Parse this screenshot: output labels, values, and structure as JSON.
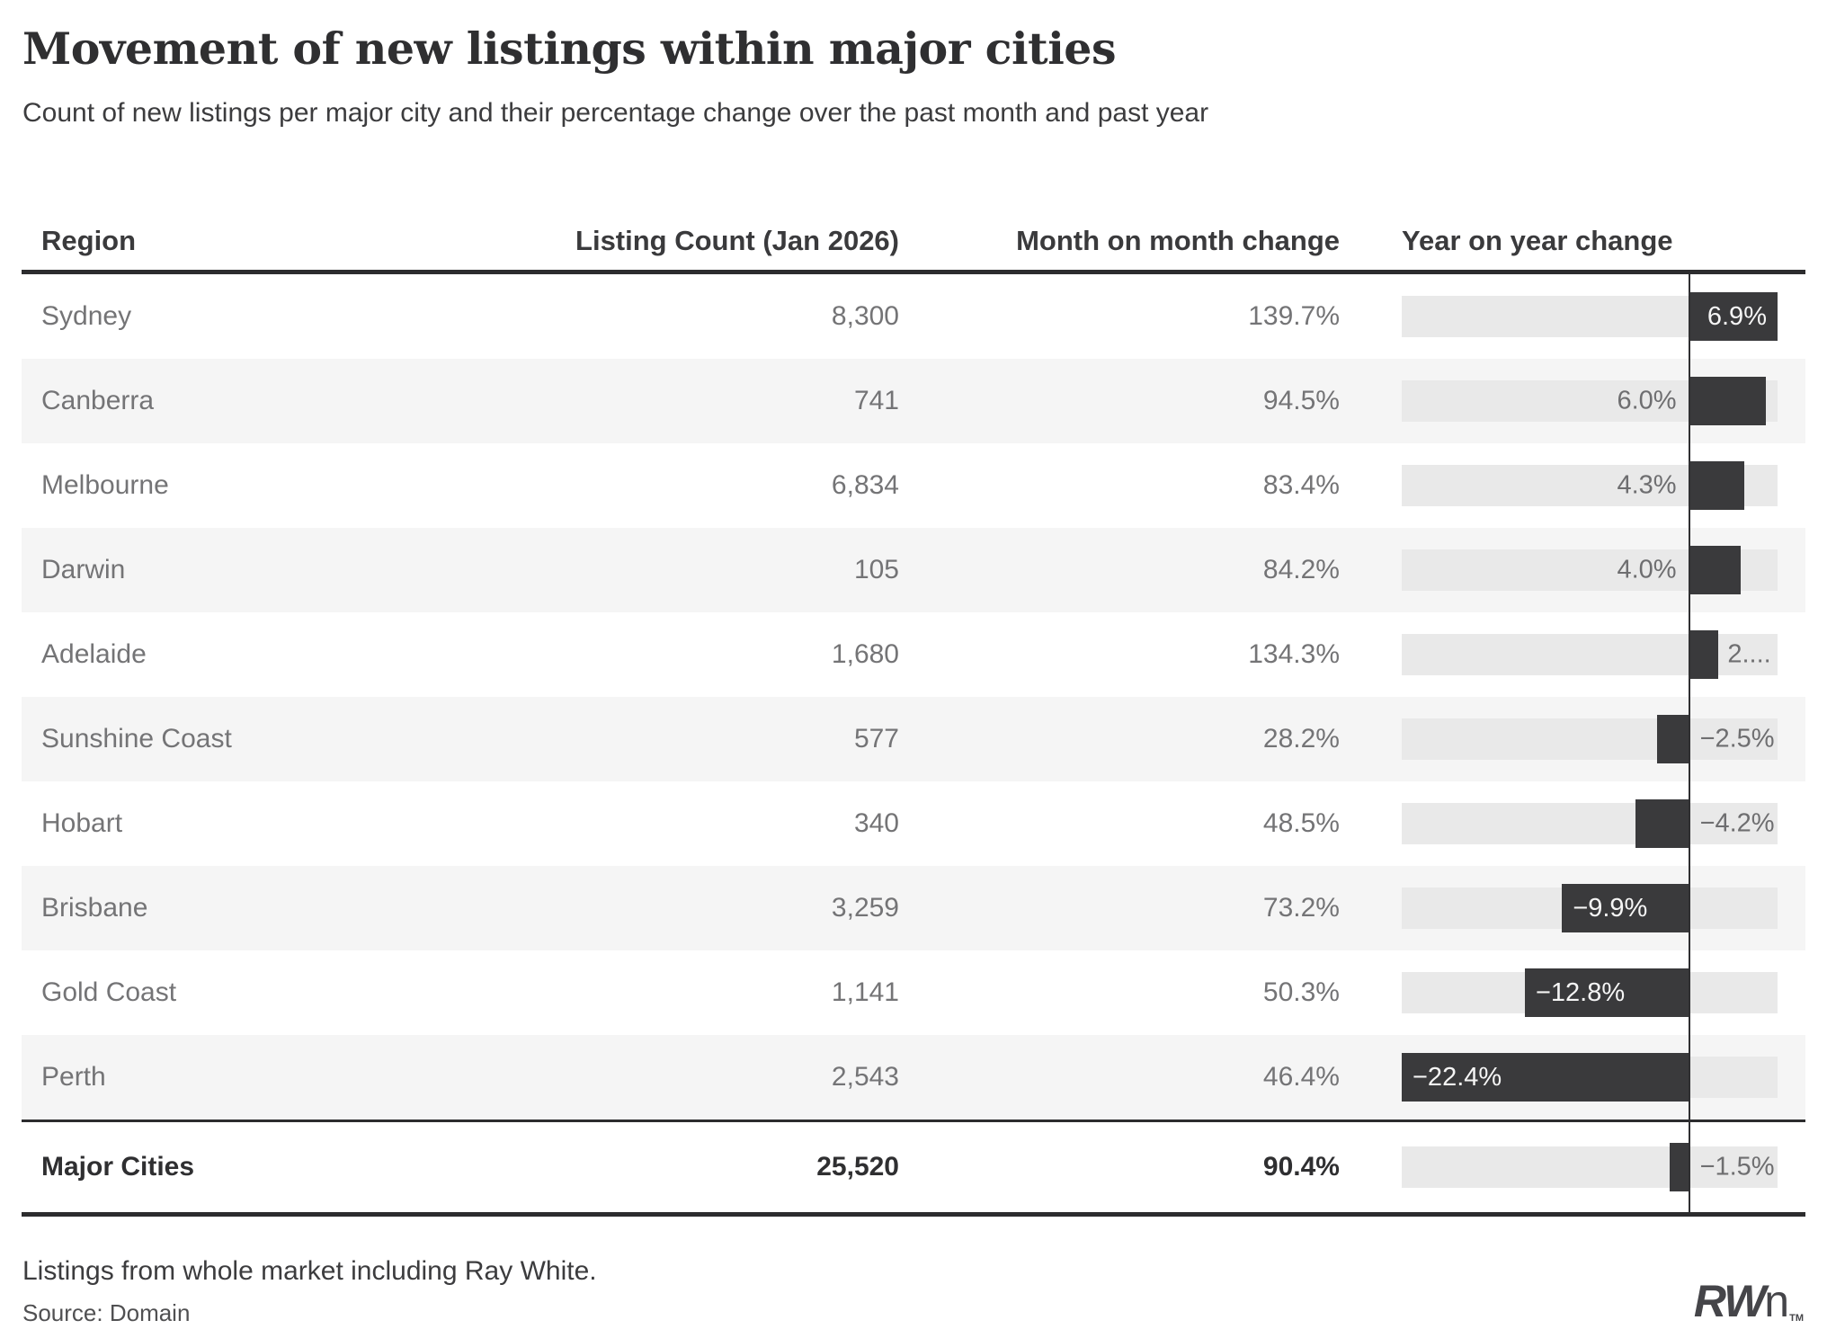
{
  "header": {
    "title": "Movement of new listings within major cities",
    "subtitle": "Count of new listings per major city and their percentage change over the past month and past year"
  },
  "table": {
    "columns": [
      "Region",
      "Listing Count (Jan 2026)",
      "Month on month change",
      "Year on year change"
    ],
    "rows": [
      {
        "region": "Sydney",
        "count": "8,300",
        "mom": "139.7%",
        "yoy_label": "6.9%",
        "yoy_value": 6.9,
        "label_pos": "inside",
        "total": false
      },
      {
        "region": "Canberra",
        "count": "741",
        "mom": "94.5%",
        "yoy_label": "6.0%",
        "yoy_value": 6.0,
        "label_pos": "before_zero",
        "total": false
      },
      {
        "region": "Melbourne",
        "count": "6,834",
        "mom": "83.4%",
        "yoy_label": "4.3%",
        "yoy_value": 4.3,
        "label_pos": "before_zero",
        "total": false
      },
      {
        "region": "Darwin",
        "count": "105",
        "mom": "84.2%",
        "yoy_label": "4.0%",
        "yoy_value": 4.0,
        "label_pos": "before_zero",
        "total": false
      },
      {
        "region": "Adelaide",
        "count": "1,680",
        "mom": "134.3%",
        "yoy_label": "2....",
        "yoy_value": 2.3,
        "label_pos": "after_bar",
        "total": false
      },
      {
        "region": "Sunshine Coast",
        "count": "577",
        "mom": "28.2%",
        "yoy_label": "−2.5%",
        "yoy_value": -2.5,
        "label_pos": "after_zero",
        "total": false
      },
      {
        "region": "Hobart",
        "count": "340",
        "mom": "48.5%",
        "yoy_label": "−4.2%",
        "yoy_value": -4.2,
        "label_pos": "after_zero",
        "total": false
      },
      {
        "region": "Brisbane",
        "count": "3,259",
        "mom": "73.2%",
        "yoy_label": "−9.9%",
        "yoy_value": -9.9,
        "label_pos": "inside",
        "total": false
      },
      {
        "region": "Gold Coast",
        "count": "1,141",
        "mom": "50.3%",
        "yoy_label": "−12.8%",
        "yoy_value": -12.8,
        "label_pos": "inside",
        "total": false
      },
      {
        "region": "Perth",
        "count": "2,543",
        "mom": "46.4%",
        "yoy_label": "−22.4%",
        "yoy_value": -22.4,
        "label_pos": "inside",
        "total": false
      },
      {
        "region": "Major Cities",
        "count": "25,520",
        "mom": "90.4%",
        "yoy_label": "−1.5%",
        "yoy_value": -1.5,
        "label_pos": "after_zero",
        "total": true
      }
    ]
  },
  "chart_data": {
    "type": "table",
    "title": "Movement of new listings within major cities",
    "subtitle": "Count of new listings per major city and their percentage change over the past month and past year",
    "columns": [
      "Region",
      "Listing Count (Jan 2026)",
      "Month on month change",
      "Year on year change"
    ],
    "categories": [
      "Sydney",
      "Canberra",
      "Melbourne",
      "Darwin",
      "Adelaide",
      "Sunshine Coast",
      "Hobart",
      "Brisbane",
      "Gold Coast",
      "Perth",
      "Major Cities"
    ],
    "series": [
      {
        "name": "Listing Count (Jan 2026)",
        "values": [
          8300,
          741,
          6834,
          105,
          1680,
          577,
          340,
          3259,
          1141,
          2543,
          25520
        ]
      },
      {
        "name": "Month on month change (%)",
        "values": [
          139.7,
          94.5,
          83.4,
          84.2,
          134.3,
          28.2,
          48.5,
          73.2,
          50.3,
          46.4,
          90.4
        ]
      },
      {
        "name": "Year on year change (%)",
        "values": [
          6.9,
          6.0,
          4.3,
          4.0,
          2.3,
          -2.5,
          -4.2,
          -9.9,
          -12.8,
          -22.4,
          -1.5
        ]
      }
    ],
    "yoy_bar_chart": {
      "type": "bar",
      "orientation": "horizontal",
      "xlim": [
        -22.4,
        6.9
      ],
      "zero_line": true,
      "note": "Adelaide year-on-year label is truncated on screen and displays as '2....'"
    }
  },
  "footnotes": {
    "line1": "Listings from whole market including Ray White.",
    "line2": "Source: Domain"
  },
  "logo": {
    "rw": "RW",
    "n": "n",
    "tm": "TM"
  },
  "colors": {
    "bar": "#3a3a3c",
    "track": "#e9e9e9",
    "stripe": "#f5f5f5",
    "rule": "#2c2c2e",
    "zero_line": "#303032",
    "cell_text": "#747476",
    "inside_label": "#f5f5f5",
    "outside_label": "#6e6e70"
  }
}
